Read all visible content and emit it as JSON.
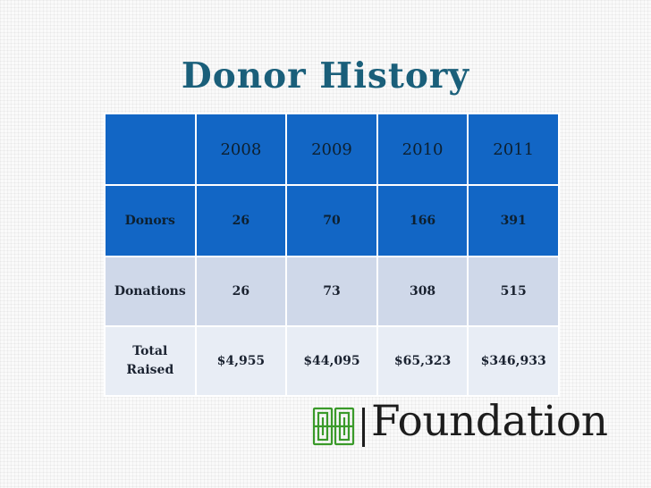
{
  "slide": {
    "title": "Donor History"
  },
  "table": {
    "header": {
      "corner": "",
      "years": [
        "2008",
        "2009",
        "2010",
        "2011"
      ]
    },
    "rows": [
      {
        "label": "Donors",
        "values": [
          "26",
          "70",
          "166",
          "391"
        ]
      },
      {
        "label": "Donations",
        "values": [
          "26",
          "73",
          "308",
          "515"
        ]
      },
      {
        "label_line1": "Total",
        "label_line2": "Raised",
        "values": [
          "$4,955",
          "$44,095",
          "$65,323",
          "$346,933"
        ]
      }
    ]
  },
  "logo": {
    "name": "Foundation"
  },
  "colors": {
    "title": "#1a5f7a",
    "header_fill": "#1266c5",
    "row_light": "#cfd8e9",
    "row_lighter": "#e8edf5",
    "logo_green": "#3a9a2a"
  }
}
